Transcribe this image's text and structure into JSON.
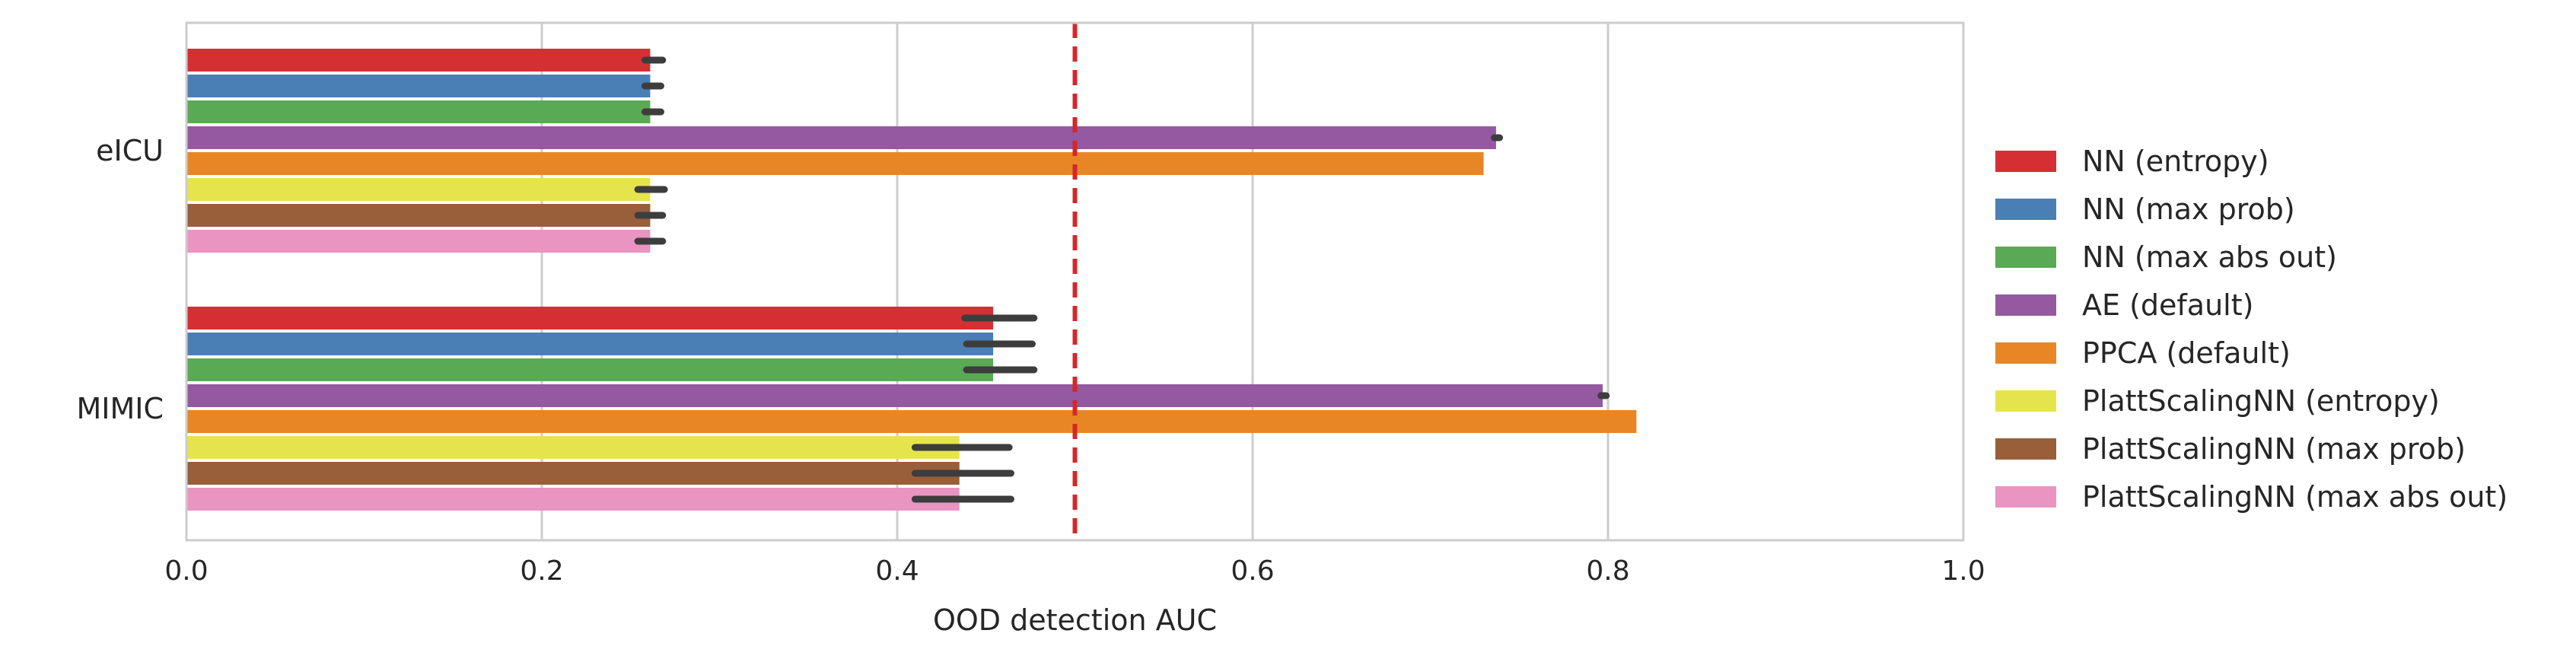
{
  "chart_data": {
    "type": "bar",
    "orientation": "horizontal",
    "categories": [
      "eICU",
      "MIMIC"
    ],
    "xlabel": "OOD detection AUC",
    "ylabel": "",
    "xlim": [
      0.0,
      1.0
    ],
    "xticks": [
      0.0,
      0.2,
      0.4,
      0.6,
      0.8,
      1.0
    ],
    "xtick_labels": [
      "0.0",
      "0.2",
      "0.4",
      "0.6",
      "0.8",
      "1.0"
    ],
    "grid": true,
    "legend_position": "right",
    "reference_line": {
      "x": 0.5,
      "color": "#d62728",
      "style": "dashed"
    },
    "series": [
      {
        "name": "NN (entropy)",
        "color": "#d62f33",
        "values": [
          0.261,
          0.454
        ],
        "err": [
          [
            0.258,
            0.268
          ],
          [
            0.438,
            0.477
          ]
        ]
      },
      {
        "name": "NN (max prob)",
        "color": "#4a7fb5",
        "values": [
          0.261,
          0.454
        ],
        "err": [
          [
            0.258,
            0.267
          ],
          [
            0.439,
            0.476
          ]
        ]
      },
      {
        "name": "NN (max abs out)",
        "color": "#5aa955",
        "values": [
          0.261,
          0.454
        ],
        "err": [
          [
            0.258,
            0.267
          ],
          [
            0.439,
            0.477
          ]
        ]
      },
      {
        "name": "AE (default)",
        "color": "#9459a0",
        "values": [
          0.737,
          0.797
        ],
        "err": [
          [
            0.736,
            0.739
          ],
          [
            0.796,
            0.799
          ]
        ]
      },
      {
        "name": "PPCA (default)",
        "color": "#e88626",
        "values": [
          0.73,
          0.816
        ],
        "err": [
          [
            0.73,
            0.73
          ],
          [
            0.816,
            0.816
          ]
        ]
      },
      {
        "name": "PlattScalingNN (entropy)",
        "color": "#e6e44d",
        "values": [
          0.261,
          0.435
        ],
        "err": [
          [
            0.254,
            0.269
          ],
          [
            0.41,
            0.463
          ]
        ]
      },
      {
        "name": "PlattScalingNN (max prob)",
        "color": "#995f3a",
        "values": [
          0.261,
          0.435
        ],
        "err": [
          [
            0.254,
            0.268
          ],
          [
            0.41,
            0.464
          ]
        ]
      },
      {
        "name": "PlattScalingNN (max abs out)",
        "color": "#e994c1",
        "values": [
          0.261,
          0.435
        ],
        "err": [
          [
            0.254,
            0.268
          ],
          [
            0.41,
            0.464
          ]
        ]
      }
    ]
  }
}
